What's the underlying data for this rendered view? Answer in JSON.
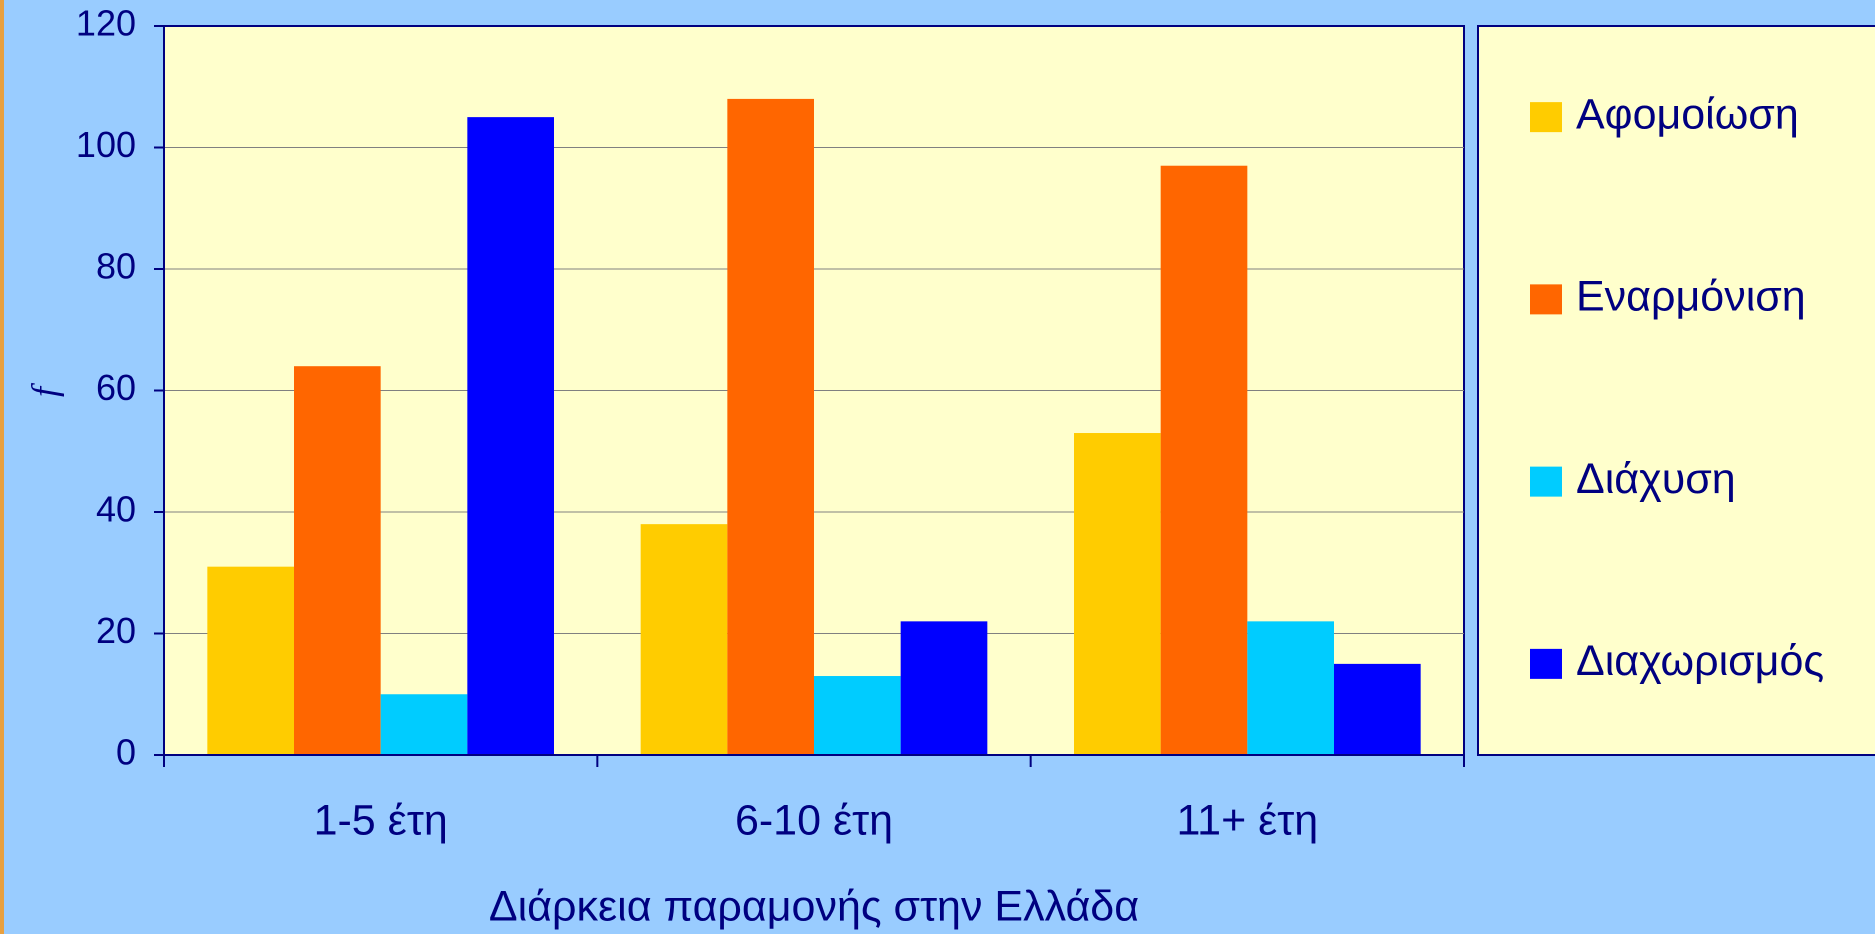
{
  "chart_data": {
    "type": "bar",
    "x_label": "Διάρκεια παραμονής στην Ελλάδα",
    "y_label": "f",
    "categories": [
      "1-5 έτη",
      "6-10 έτη",
      "11+ έτη"
    ],
    "series": [
      {
        "name": "Αφομοίωση",
        "color": "#ffcc00",
        "values": [
          31,
          38,
          53
        ]
      },
      {
        "name": "Εναρμόνιση",
        "color": "#ff6600",
        "values": [
          64,
          108,
          97
        ]
      },
      {
        "name": "Διάχυση",
        "color": "#00ccff",
        "values": [
          10,
          13,
          22
        ]
      },
      {
        "name": "Διαχωρισμός",
        "color": "#0000ff",
        "values": [
          105,
          22,
          15
        ]
      }
    ],
    "ylim": [
      0,
      120
    ],
    "yticks": [
      0,
      20,
      40,
      60,
      80,
      100,
      120
    ],
    "grid": true,
    "legend": "right"
  }
}
